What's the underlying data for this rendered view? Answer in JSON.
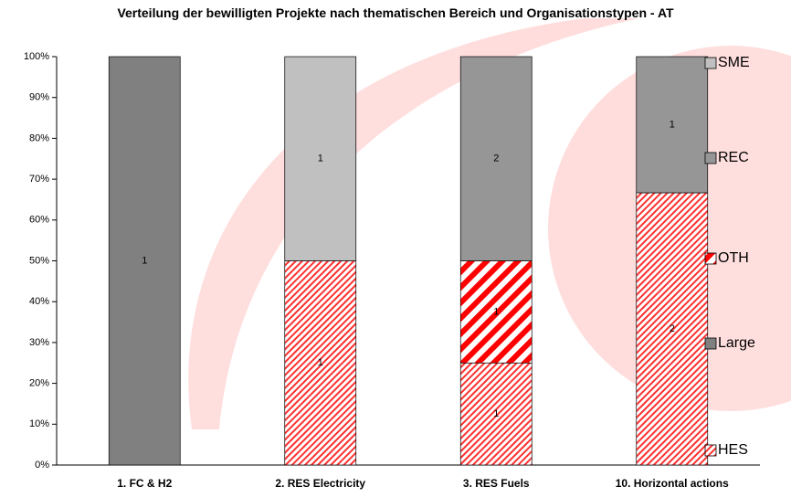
{
  "chart_data": {
    "type": "bar",
    "stacking": "percent",
    "title": "Verteilung der bewilligten Projekte nach thematischen Bereich und Organisationstypen - AT",
    "categories": [
      "1. FC & H2",
      "2. RES Electricity",
      "3. RES Fuels",
      "10. Horizontal actions"
    ],
    "series": [
      {
        "name": "SME",
        "color": "#c0c0c0",
        "values": [
          null,
          1,
          null,
          null
        ]
      },
      {
        "name": "REC",
        "color": "#969696",
        "values": [
          null,
          null,
          2,
          1
        ]
      },
      {
        "name": "OTH",
        "color": "#ff0000",
        "pattern": "wide-diagonal",
        "values": [
          null,
          null,
          1,
          null
        ]
      },
      {
        "name": "Large",
        "color": "#808080",
        "values": [
          1,
          null,
          null,
          null
        ]
      },
      {
        "name": "HES",
        "color": "#ff0000",
        "pattern": "fine-diagonal",
        "values": [
          null,
          1,
          1,
          2
        ]
      }
    ],
    "ylim": [
      0,
      100
    ],
    "yticks": [
      {
        "value": 0,
        "label": "0%"
      },
      {
        "value": 10,
        "label": "10%"
      },
      {
        "value": 20,
        "label": "20%"
      },
      {
        "value": 30,
        "label": "30%"
      },
      {
        "value": 40,
        "label": "40%"
      },
      {
        "value": 50,
        "label": "50%"
      },
      {
        "value": 60,
        "label": "60%"
      },
      {
        "value": 70,
        "label": "70%"
      },
      {
        "value": 80,
        "label": "80%"
      },
      {
        "value": 90,
        "label": "90%"
      },
      {
        "value": 100,
        "label": "100%"
      }
    ],
    "legend": "right"
  }
}
